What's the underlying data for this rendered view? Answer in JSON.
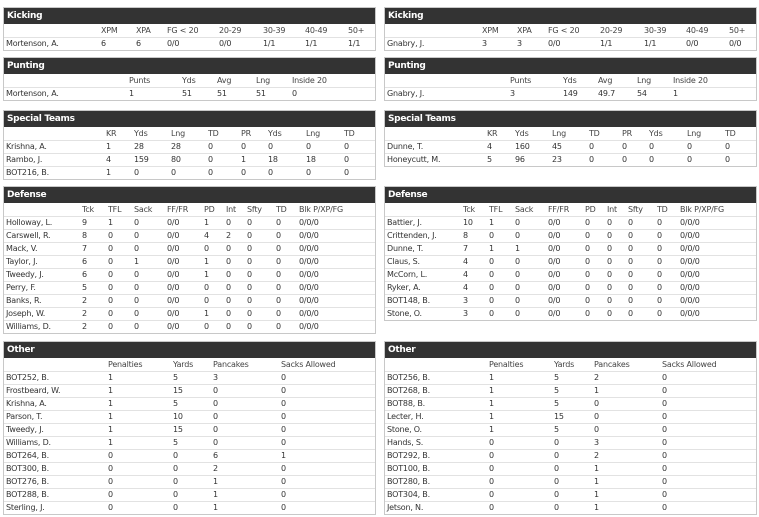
{
  "left_column": [
    {
      "title": "Kicking",
      "headers": [
        "XPM",
        "XPA",
        "FG < 20",
        "20-29",
        "30-39",
        "40-49",
        "50+"
      ],
      "rows": [
        [
          "Mortenson, A.",
          "6",
          "6",
          "0/0",
          "0/0",
          "1/1",
          "1/1",
          "1/1"
        ]
      ]
    },
    {
      "title": "Punting",
      "headers": [
        "Punts",
        "Yds",
        "Avg",
        "Lng",
        "Inside 20"
      ],
      "rows": [
        [
          "Mortenson, A.",
          "1",
          "51",
          "51",
          "51",
          "0"
        ]
      ]
    },
    {
      "title": "Special Teams",
      "headers": [
        "KR",
        "Yds",
        "Lng",
        "TD",
        "PR",
        "Yds",
        "Lng",
        "TD"
      ],
      "rows": [
        [
          "Krishna, A.",
          "1",
          "28",
          "28",
          "0",
          "0",
          "0",
          "0",
          "0"
        ],
        [
          "Rambo, J.",
          "4",
          "159",
          "80",
          "0",
          "1",
          "18",
          "18",
          "0"
        ],
        [
          "BOT216, B.",
          "1",
          "0",
          "0",
          "0",
          "0",
          "0",
          "0",
          "0"
        ]
      ]
    },
    {
      "title": "Defense",
      "headers": [
        "Tck",
        "TFL",
        "Sack",
        "FF/FR",
        "PD",
        "Int",
        "Sfty",
        "TD",
        "Blk P/XP/FG"
      ],
      "rows": [
        [
          "Holloway, L.",
          "9",
          "1",
          "0",
          "0/0",
          "1",
          "0",
          "0",
          "0",
          "0/0/0"
        ],
        [
          "Carswell, R.",
          "8",
          "0",
          "0",
          "0/0",
          "4",
          "2",
          "0",
          "0",
          "0/0/0"
        ],
        [
          "Mack, V.",
          "7",
          "0",
          "0",
          "0/0",
          "0",
          "0",
          "0",
          "0",
          "0/0/0"
        ],
        [
          "Taylor, J.",
          "6",
          "0",
          "1",
          "0/0",
          "1",
          "0",
          "0",
          "0",
          "0/0/0"
        ],
        [
          "Tweedy, J.",
          "6",
          "0",
          "0",
          "0/0",
          "1",
          "0",
          "0",
          "0",
          "0/0/0"
        ],
        [
          "Perry, F.",
          "5",
          "0",
          "0",
          "0/0",
          "0",
          "0",
          "0",
          "0",
          "0/0/0"
        ],
        [
          "Banks, R.",
          "2",
          "0",
          "0",
          "0/0",
          "0",
          "0",
          "0",
          "0",
          "0/0/0"
        ],
        [
          "Joseph, W.",
          "2",
          "0",
          "0",
          "0/0",
          "1",
          "0",
          "0",
          "0",
          "0/0/0"
        ],
        [
          "Williams, D.",
          "2",
          "0",
          "0",
          "0/0",
          "0",
          "0",
          "0",
          "0",
          "0/0/0"
        ]
      ]
    },
    {
      "title": "Other",
      "headers": [
        "Penalties",
        "Yards",
        "Pancakes",
        "Sacks Allowed"
      ],
      "rows": [
        [
          "BOT252, B.",
          "1",
          "5",
          "3",
          "0"
        ],
        [
          "Frostbeard, W.",
          "1",
          "15",
          "0",
          "0"
        ],
        [
          "Krishna, A.",
          "1",
          "5",
          "0",
          "0"
        ],
        [
          "Parson, T.",
          "1",
          "10",
          "0",
          "0"
        ],
        [
          "Tweedy, J.",
          "1",
          "15",
          "0",
          "0"
        ],
        [
          "Williams, D.",
          "1",
          "5",
          "0",
          "0"
        ],
        [
          "BOT264, B.",
          "0",
          "0",
          "6",
          "1"
        ],
        [
          "BOT300, B.",
          "0",
          "0",
          "2",
          "0"
        ],
        [
          "BOT276, B.",
          "0",
          "0",
          "1",
          "0"
        ],
        [
          "BOT288, B.",
          "0",
          "0",
          "1",
          "0"
        ],
        [
          "Sterling, J.",
          "0",
          "0",
          "1",
          "0"
        ]
      ]
    }
  ],
  "right_column": [
    {
      "title": "Kicking",
      "headers": [
        "XPM",
        "XPA",
        "FG < 20",
        "20-29",
        "30-39",
        "40-49",
        "50+"
      ],
      "rows": [
        [
          "Gnabry, J.",
          "3",
          "3",
          "0/0",
          "1/1",
          "1/1",
          "0/0",
          "0/0"
        ]
      ]
    },
    {
      "title": "Punting",
      "headers": [
        "Punts",
        "Yds",
        "Avg",
        "Lng",
        "Inside 20"
      ],
      "rows": [
        [
          "Gnabry, J.",
          "3",
          "149",
          "49.7",
          "54",
          "1"
        ]
      ]
    },
    {
      "title": "Special Teams",
      "headers": [
        "KR",
        "Yds",
        "Lng",
        "TD",
        "PR",
        "Yds",
        "Lng",
        "TD"
      ],
      "rows": [
        [
          "Dunne, T.",
          "4",
          "160",
          "45",
          "0",
          "0",
          "0",
          "0",
          "0"
        ],
        [
          "Honeycutt, M.",
          "5",
          "96",
          "23",
          "0",
          "0",
          "0",
          "0",
          "0"
        ]
      ]
    },
    {
      "title": "Defense",
      "headers": [
        "Tck",
        "TFL",
        "Sack",
        "FF/FR",
        "PD",
        "Int",
        "Sfty",
        "TD",
        "Blk P/XP/FG"
      ],
      "rows": [
        [
          "Battier, J.",
          "10",
          "1",
          "0",
          "0/0",
          "0",
          "0",
          "0",
          "0",
          "0/0/0"
        ],
        [
          "Crittenden, J.",
          "8",
          "0",
          "0",
          "0/0",
          "0",
          "0",
          "0",
          "0",
          "0/0/0"
        ],
        [
          "Dunne, T.",
          "7",
          "1",
          "1",
          "0/0",
          "0",
          "0",
          "0",
          "0",
          "0/0/0"
        ],
        [
          "Claus, S.",
          "4",
          "0",
          "0",
          "0/0",
          "0",
          "0",
          "0",
          "0",
          "0/0/0"
        ],
        [
          "McCorn, L.",
          "4",
          "0",
          "0",
          "0/0",
          "0",
          "0",
          "0",
          "0",
          "0/0/0"
        ],
        [
          "Ryker, A.",
          "4",
          "0",
          "0",
          "0/0",
          "0",
          "0",
          "0",
          "0",
          "0/0/0"
        ],
        [
          "BOT148, B.",
          "3",
          "0",
          "0",
          "0/0",
          "0",
          "0",
          "0",
          "0",
          "0/0/0"
        ],
        [
          "Stone, O.",
          "3",
          "0",
          "0",
          "0/0",
          "0",
          "0",
          "0",
          "0",
          "0/0/0"
        ]
      ]
    },
    {
      "title": "Other",
      "headers": [
        "Penalties",
        "Yards",
        "Pancakes",
        "Sacks Allowed"
      ],
      "rows": [
        [
          "BOT256, B.",
          "1",
          "5",
          "2",
          "0"
        ],
        [
          "BOT268, B.",
          "1",
          "5",
          "1",
          "0"
        ],
        [
          "BOT88, B.",
          "1",
          "5",
          "0",
          "0"
        ],
        [
          "Lecter, H.",
          "1",
          "15",
          "0",
          "0"
        ],
        [
          "Stone, O.",
          "1",
          "5",
          "0",
          "0"
        ],
        [
          "Hands, S.",
          "0",
          "0",
          "3",
          "0"
        ],
        [
          "BOT292, B.",
          "0",
          "0",
          "2",
          "0"
        ],
        [
          "BOT100, B.",
          "0",
          "0",
          "1",
          "0"
        ],
        [
          "BOT280, B.",
          "0",
          "0",
          "1",
          "0"
        ],
        [
          "BOT304, B.",
          "0",
          "0",
          "1",
          "0"
        ],
        [
          "Jetson, N.",
          "0",
          "0",
          "1",
          "0"
        ]
      ]
    }
  ]
}
